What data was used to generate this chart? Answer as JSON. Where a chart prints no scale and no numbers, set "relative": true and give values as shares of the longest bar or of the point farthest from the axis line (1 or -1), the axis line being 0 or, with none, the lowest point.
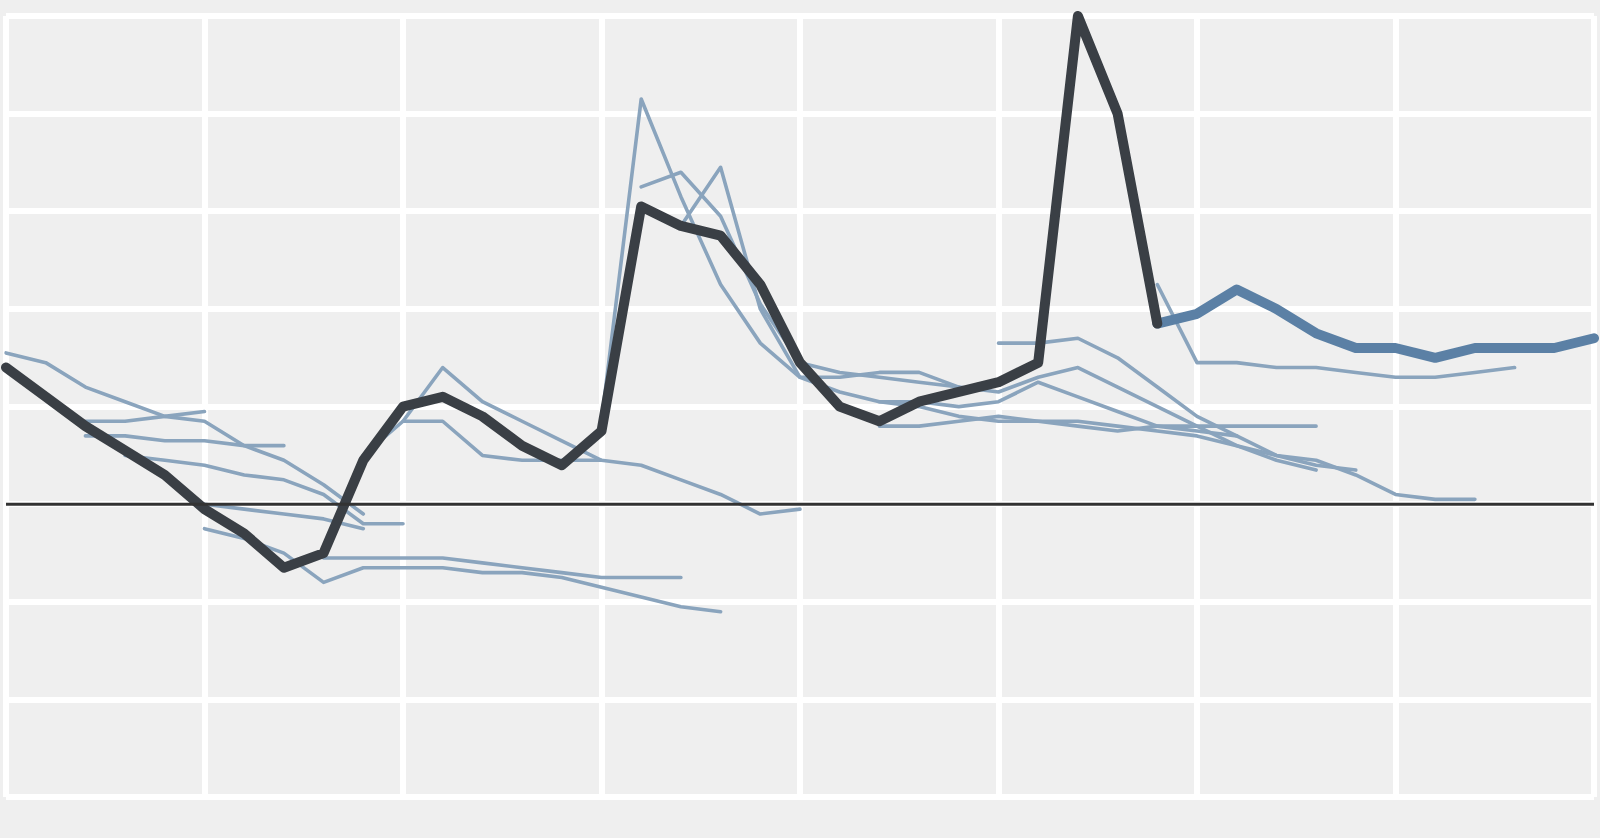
{
  "chart_data": {
    "type": "line",
    "relative": true,
    "grid": true,
    "legend": false,
    "marker": "none",
    "line_style": "solid",
    "categories": [
      null,
      null,
      null,
      null,
      null,
      null,
      null,
      null,
      null,
      null,
      null,
      null,
      null,
      null,
      null,
      null,
      null,
      null,
      null,
      null,
      null,
      null,
      null,
      null,
      null,
      null,
      null,
      null,
      null,
      null,
      null,
      null,
      null,
      null,
      null,
      null,
      null,
      null,
      null,
      null,
      null
    ],
    "series": [
      {
        "color": "#3a3f45",
        "values": [
          0.28,
          0.22,
          0.16,
          0.11,
          0.06,
          -0.01,
          -0.06,
          -0.13,
          -0.1,
          0.09,
          0.2,
          0.22,
          0.18,
          0.12,
          0.08,
          0.15,
          0.61,
          0.57,
          0.55,
          0.45,
          0.29,
          0.2,
          0.17,
          0.21,
          0.23,
          0.25,
          0.29,
          1,
          0.8,
          0.37,
          null,
          null,
          null,
          null,
          null,
          null,
          null,
          null,
          null,
          null,
          null
        ]
      },
      {
        "color": "#5b80a5",
        "values": [
          null,
          null,
          null,
          null,
          null,
          null,
          null,
          null,
          null,
          null,
          null,
          null,
          null,
          null,
          null,
          null,
          null,
          null,
          null,
          null,
          null,
          null,
          null,
          null,
          null,
          null,
          null,
          null,
          null,
          0.37,
          0.39,
          0.44,
          0.4,
          0.35,
          0.32,
          0.32,
          0.3,
          0.32,
          0.32,
          0.32,
          0.34
        ]
      },
      {
        "color": "#8aa4bd",
        "values": [
          0.31,
          0.29,
          0.24,
          0.21,
          0.18,
          0.17,
          0.12,
          0.09,
          0.04,
          -0.02,
          null,
          null,
          null,
          null,
          null,
          null,
          null,
          null,
          null,
          null,
          null,
          null,
          null,
          null,
          null,
          null,
          null,
          null,
          null,
          null,
          null,
          null,
          null,
          null,
          null,
          null,
          null,
          null,
          null,
          null,
          null
        ]
      },
      {
        "color": "#8aa4bd",
        "values": [
          null,
          null,
          0.17,
          0.17,
          0.18,
          0.19,
          null,
          null,
          null,
          null,
          null,
          null,
          null,
          null,
          null,
          null,
          null,
          null,
          null,
          null,
          null,
          null,
          null,
          null,
          null,
          null,
          null,
          null,
          null,
          null,
          null,
          null,
          null,
          null,
          null,
          null,
          null,
          null,
          null,
          null,
          null
        ]
      },
      {
        "color": "#8aa4bd",
        "values": [
          null,
          null,
          0.14,
          0.14,
          0.13,
          0.13,
          0.12,
          0.12,
          null,
          null,
          null,
          null,
          null,
          null,
          null,
          null,
          null,
          null,
          null,
          null,
          null,
          null,
          null,
          null,
          null,
          null,
          null,
          null,
          null,
          null,
          null,
          null,
          null,
          null,
          null,
          null,
          null,
          null,
          null,
          null,
          null
        ]
      },
      {
        "color": "#8aa4bd",
        "values": [
          null,
          null,
          null,
          0.1,
          0.09,
          0.08,
          0.06,
          0.05,
          0.02,
          -0.04,
          -0.04,
          null,
          null,
          null,
          null,
          null,
          null,
          null,
          null,
          null,
          null,
          null,
          null,
          null,
          null,
          null,
          null,
          null,
          null,
          null,
          null,
          null,
          null,
          null,
          null,
          null,
          null,
          null,
          null,
          null,
          null
        ]
      },
      {
        "color": "#8aa4bd",
        "values": [
          null,
          null,
          null,
          null,
          null,
          0.0,
          -0.01,
          -0.02,
          -0.03,
          -0.05,
          null,
          null,
          null,
          null,
          null,
          null,
          null,
          null,
          null,
          null,
          null,
          null,
          null,
          null,
          null,
          null,
          null,
          null,
          null,
          null,
          null,
          null,
          null,
          null,
          null,
          null,
          null,
          null,
          null,
          null,
          null
        ]
      },
      {
        "color": "#8aa4bd",
        "values": [
          null,
          null,
          null,
          null,
          null,
          -0.05,
          -0.07,
          -0.1,
          -0.16,
          -0.13,
          -0.13,
          -0.13,
          -0.14,
          -0.14,
          -0.15,
          -0.17,
          -0.19,
          -0.21,
          -0.22,
          null,
          null,
          null,
          null,
          null,
          null,
          null,
          null,
          null,
          null,
          null,
          null,
          null,
          null,
          null,
          null,
          null,
          null,
          null,
          null,
          null,
          null
        ]
      },
      {
        "color": "#8aa4bd",
        "values": [
          null,
          null,
          null,
          null,
          null,
          null,
          null,
          null,
          -0.11,
          -0.11,
          -0.11,
          -0.11,
          -0.12,
          -0.13,
          -0.14,
          -0.15,
          -0.15,
          -0.15,
          null,
          null,
          null,
          null,
          null,
          null,
          null,
          null,
          null,
          null,
          null,
          null,
          null,
          null,
          null,
          null,
          null,
          null,
          null,
          null,
          null,
          null,
          null
        ]
      },
      {
        "color": "#8aa4bd",
        "values": [
          null,
          null,
          null,
          null,
          null,
          null,
          null,
          null,
          null,
          0.1,
          0.17,
          0.28,
          0.21,
          0.17,
          0.13,
          0.09,
          0.08,
          0.05,
          0.02,
          -0.02,
          -0.01,
          null,
          null,
          null,
          null,
          null,
          null,
          null,
          null,
          null,
          null,
          null,
          null,
          null,
          null,
          null,
          null,
          null,
          null,
          null,
          null
        ]
      },
      {
        "color": "#8aa4bd",
        "values": [
          null,
          null,
          null,
          null,
          null,
          null,
          null,
          null,
          null,
          null,
          0.17,
          0.17,
          0.1,
          0.09,
          0.09,
          0.09,
          null,
          null,
          null,
          null,
          null,
          null,
          null,
          null,
          null,
          null,
          null,
          null,
          null,
          null,
          null,
          null,
          null,
          null,
          null,
          null,
          null,
          null,
          null,
          null,
          null
        ]
      },
      {
        "color": "#8aa4bd",
        "values": [
          null,
          null,
          null,
          null,
          null,
          null,
          null,
          null,
          null,
          null,
          null,
          null,
          null,
          null,
          null,
          0.17,
          0.83,
          0.63,
          0.45,
          0.33,
          0.26,
          0.26,
          0.27,
          0.27,
          0.24,
          null,
          null,
          null,
          null,
          null,
          null,
          null,
          null,
          null,
          null,
          null,
          null,
          null,
          null,
          null,
          null
        ]
      },
      {
        "color": "#8aa4bd",
        "values": [
          null,
          null,
          null,
          null,
          null,
          null,
          null,
          null,
          null,
          null,
          null,
          null,
          null,
          null,
          null,
          null,
          0.65,
          0.68,
          0.59,
          0.41,
          0.29,
          0.27,
          0.26,
          0.25,
          0.24,
          0.23,
          0.26,
          0.28,
          0.24,
          0.2,
          0.16,
          0.12,
          0.09,
          0.07,
          null,
          null,
          null,
          null,
          null,
          null,
          null
        ]
      },
      {
        "color": "#8aa4bd",
        "values": [
          null,
          null,
          null,
          null,
          null,
          null,
          null,
          null,
          null,
          null,
          null,
          null,
          null,
          null,
          null,
          null,
          null,
          0.57,
          0.69,
          0.4,
          0.26,
          0.23,
          0.21,
          0.21,
          0.2,
          0.21,
          0.25,
          0.22,
          0.19,
          0.16,
          0.15,
          0.14,
          null,
          null,
          null,
          null,
          null,
          null,
          null,
          null,
          null
        ]
      },
      {
        "color": "#8aa4bd",
        "values": [
          null,
          null,
          null,
          null,
          null,
          null,
          null,
          null,
          null,
          null,
          null,
          null,
          null,
          null,
          null,
          null,
          null,
          null,
          null,
          null,
          null,
          null,
          null,
          null,
          null,
          null,
          null,
          null,
          null,
          0.45,
          0.29,
          0.29,
          0.28,
          0.28,
          0.27,
          0.26,
          0.26,
          0.27,
          0.28,
          null,
          null
        ]
      },
      {
        "color": "#8aa4bd",
        "values": [
          null,
          null,
          null,
          null,
          null,
          null,
          null,
          null,
          null,
          null,
          null,
          null,
          null,
          null,
          null,
          null,
          null,
          null,
          null,
          null,
          null,
          null,
          0.21,
          0.2,
          0.18,
          0.17,
          0.17,
          0.17,
          0.16,
          0.15,
          0.14,
          0.12,
          0.1,
          0.09,
          0.06,
          0.02,
          0.01,
          0.01,
          null,
          null,
          null
        ]
      },
      {
        "color": "#8aa4bd",
        "values": [
          null,
          null,
          null,
          null,
          null,
          null,
          null,
          null,
          null,
          null,
          null,
          null,
          null,
          null,
          null,
          null,
          null,
          null,
          null,
          null,
          null,
          null,
          null,
          null,
          null,
          0.33,
          0.33,
          0.34,
          0.3,
          0.24,
          0.18,
          0.14,
          0.1,
          0.08,
          0.07,
          null,
          null,
          null,
          null,
          null,
          null
        ]
      },
      {
        "color": "#8aa4bd",
        "values": [
          null,
          null,
          null,
          null,
          null,
          null,
          null,
          null,
          null,
          null,
          null,
          null,
          null,
          null,
          null,
          null,
          null,
          null,
          null,
          null,
          null,
          null,
          0.16,
          0.16,
          0.17,
          0.18,
          0.17,
          0.16,
          0.15,
          0.16,
          0.16,
          0.16,
          0.16,
          0.16,
          null,
          null,
          null,
          null,
          null,
          null,
          null
        ]
      }
    ]
  }
}
